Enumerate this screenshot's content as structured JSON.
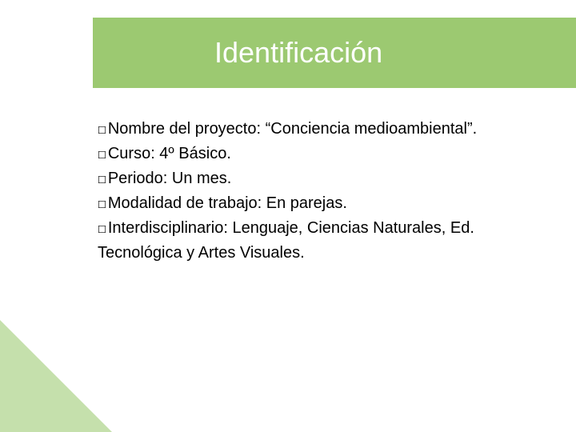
{
  "slide": {
    "title": "Identificación",
    "title_bar_color": "#9cc971",
    "corner_color": "#c5e0ac",
    "bullet_glyph": "☐",
    "lines": [
      "Nombre del proyecto: “Conciencia medioambiental”.",
      "Curso: 4º Básico.",
      "Periodo: Un mes.",
      "Modalidad de trabajo: En parejas.",
      "Interdisciplinario: Lenguaje, Ciencias Naturales, Ed. Tecnológica y Artes Visuales."
    ]
  }
}
